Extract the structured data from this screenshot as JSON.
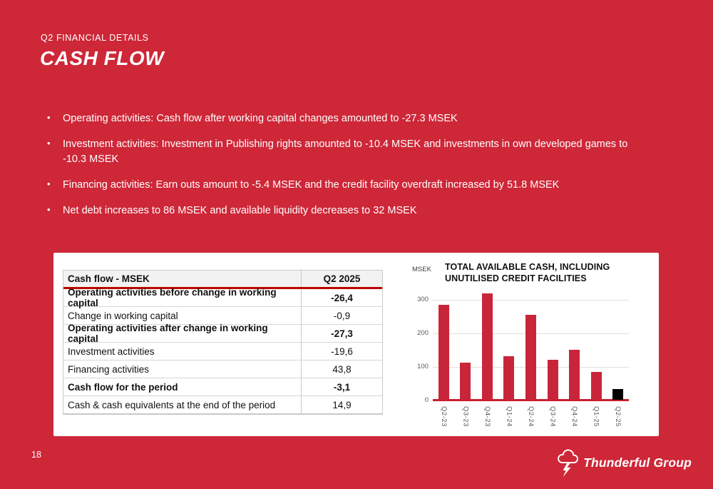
{
  "slide": {
    "eyebrow": "Q2 FINANCIAL DETAILS",
    "title": "CASH FLOW",
    "page_number": "18",
    "background_color": "#CE2738",
    "text_color": "#FFFFFF",
    "bullets": [
      "Operating activities: Cash flow after working capital changes amounted to -27.3 MSEK",
      "Investment activities: Investment in Publishing rights amounted to -10.4 MSEK and investments in own developed games to -10.3 MSEK",
      "Financing activities: Earn outs amount to -5.4 MSEK and the credit facility overdraft increased by 51.8 MSEK",
      "Net debt increases to 86 MSEK and available liquidity decreases to 32 MSEK"
    ],
    "logo_text": "Thunderful Group",
    "logo_icon": "thundercloud-lightning-icon"
  },
  "table": {
    "headers": [
      "Cash flow - MSEK",
      "Q2 2025"
    ],
    "header_underline_color": "#C00000",
    "rows": [
      {
        "label": "Operating activities before change in working capital",
        "value": "-26,4",
        "bold": true
      },
      {
        "label": "Change in working capital",
        "value": "-0,9",
        "bold": false
      },
      {
        "label": "Operating activities after change in working capital",
        "value": "-27,3",
        "bold": true
      },
      {
        "label": "Investment activities",
        "value": "-19,6",
        "bold": false
      },
      {
        "label": "Financing activities",
        "value": "43,8",
        "bold": false
      },
      {
        "label": "Cash flow for the period",
        "value": "-3,1",
        "bold": true
      },
      {
        "label": "Cash & cash equivalents at the end of the period",
        "value": "14,9",
        "bold": false
      }
    ]
  },
  "chart_data": {
    "type": "bar",
    "title": "TOTAL AVAILABLE CASH, INCLUDING UNUTILISED CREDIT FACILITIES",
    "unit_label": "MSEK",
    "categories": [
      "Q2-23",
      "Q3-23",
      "Q4-23",
      "Q1-24",
      "Q2-24",
      "Q3-24",
      "Q4-24",
      "Q1-25",
      "Q2-25"
    ],
    "values": [
      283,
      110,
      318,
      130,
      253,
      120,
      150,
      82,
      32
    ],
    "bar_color": "#C9253A",
    "highlight_index": 8,
    "highlight_color": "#000000",
    "yticks": [
      0,
      100,
      200,
      300
    ],
    "ylim": [
      0,
      334
    ],
    "grid": true,
    "axis_line_color": "#C81E32",
    "legend": "none"
  }
}
